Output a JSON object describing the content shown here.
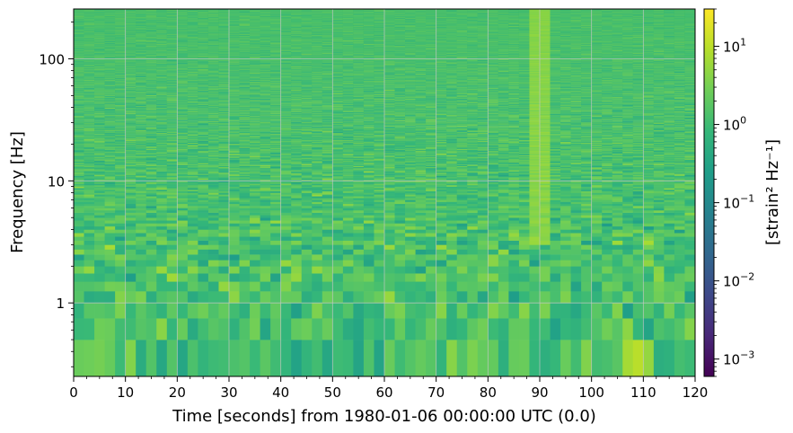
{
  "chart_data": {
    "type": "heatmap",
    "title": "",
    "xlabel": "Time [seconds] from 1980-01-06 00:00:00 UTC (0.0)",
    "ylabel": "Frequency [Hz]",
    "xlim": [
      0,
      120
    ],
    "ylim": [
      0.25,
      256
    ],
    "yscale": "log",
    "grid": true,
    "x_ticks": [
      {
        "value": 0,
        "label": "0"
      },
      {
        "value": 10,
        "label": "10"
      },
      {
        "value": 20,
        "label": "20"
      },
      {
        "value": 30,
        "label": "30"
      },
      {
        "value": 40,
        "label": "40"
      },
      {
        "value": 50,
        "label": "50"
      },
      {
        "value": 60,
        "label": "60"
      },
      {
        "value": 70,
        "label": "70"
      },
      {
        "value": 80,
        "label": "80"
      },
      {
        "value": 90,
        "label": "90"
      },
      {
        "value": 100,
        "label": "100"
      },
      {
        "value": 110,
        "label": "110"
      },
      {
        "value": 120,
        "label": "120"
      }
    ],
    "y_ticks": [
      {
        "value": 1,
        "label": "1"
      },
      {
        "value": 10,
        "label": "10"
      },
      {
        "value": 100,
        "label": "100"
      }
    ],
    "time_bin_seconds": 2,
    "noise_floor_log10": 0.1,
    "colorbar": {
      "label": "[strain² Hz⁻¹]",
      "scale": "log",
      "range": [
        0.0006,
        30
      ],
      "colormap": [
        "#440154",
        "#482878",
        "#3e4989",
        "#31688e",
        "#26828e",
        "#1f9e89",
        "#35b779",
        "#6ece58",
        "#b5de2b",
        "#fde725"
      ],
      "ticks": [
        {
          "value": 0.001,
          "base": "10",
          "exp": "−3"
        },
        {
          "value": 0.01,
          "base": "10",
          "exp": "−2"
        },
        {
          "value": 0.1,
          "base": "10",
          "exp": "−1"
        },
        {
          "value": 1,
          "base": "10",
          "exp": "0"
        },
        {
          "value": 10,
          "base": "10",
          "exp": "1"
        }
      ]
    },
    "features": [
      {
        "type": "vertical_band",
        "t_start": 88,
        "t_end": 92,
        "f_min": 3,
        "f_max": 256,
        "level_log10": 0.7
      },
      {
        "type": "blob",
        "t_start": 106,
        "t_end": 112,
        "f_min": 0.25,
        "f_max": 0.5,
        "level_log10": 1.0
      }
    ]
  }
}
